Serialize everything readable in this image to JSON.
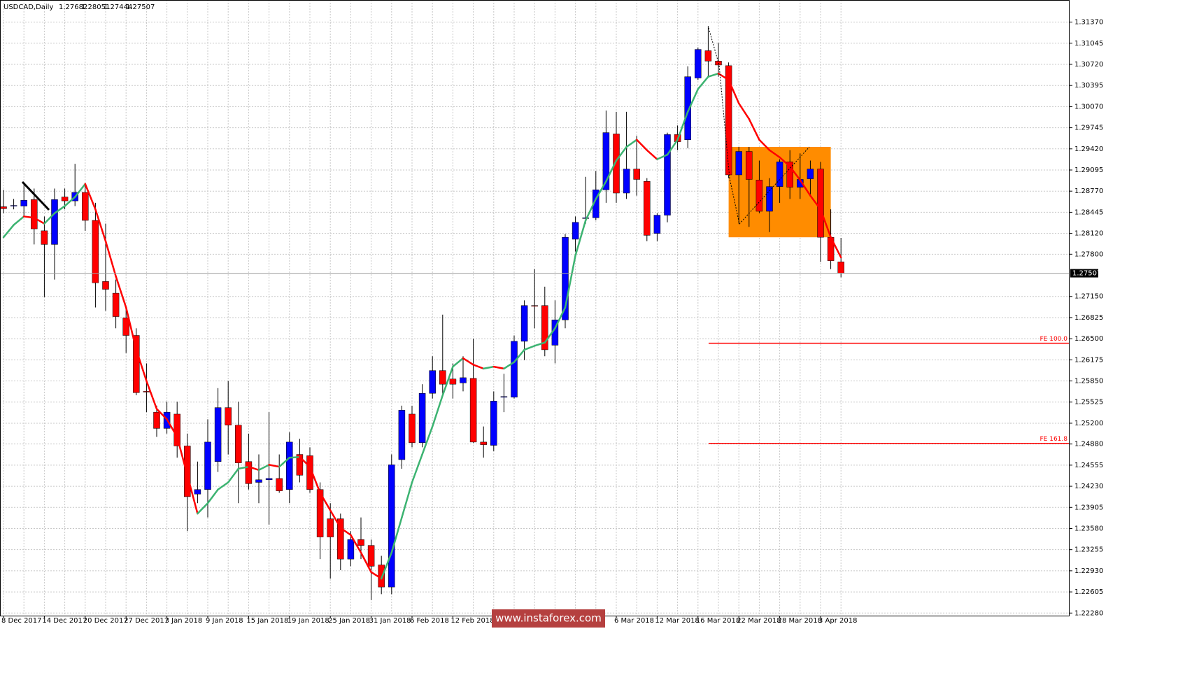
{
  "chart_data": {
    "type": "candlestick",
    "title": "USDCAD,Daily",
    "categories": [
      "8 Dec 2017",
      null,
      null,
      null,
      "14 Dec 2017",
      null,
      null,
      null,
      "20 Dec 2017",
      null,
      null,
      null,
      "27 Dec 2017",
      null,
      null,
      null,
      "3 Jan 2018",
      null,
      null,
      null,
      "9 Jan 2018",
      null,
      null,
      null,
      "15 Jan 2018",
      null,
      null,
      null,
      "19 Jan 2018",
      null,
      null,
      null,
      "25 Jan 2018",
      null,
      null,
      null,
      "31 Jan 2018",
      null,
      null,
      null,
      "6 Feb 2018",
      null,
      null,
      null,
      "12 Feb 2018",
      null,
      null,
      null,
      null,
      null,
      null,
      null,
      null,
      null,
      null,
      null,
      null,
      null,
      null,
      null,
      "6 Mar 2018",
      null,
      null,
      null,
      "12 Mar 2018",
      null,
      null,
      null,
      "16 Mar 2018",
      null,
      null,
      null,
      "22 Mar 2018",
      null,
      null,
      null,
      "28 Mar 2018",
      null,
      null,
      null,
      "3 Apr 2018",
      null,
      null
    ],
    "open": [
      1.2853,
      1.2854,
      1.2854,
      1.2864,
      1.2816,
      1.2795,
      1.2868,
      1.2862,
      1.2875,
      1.2832,
      1.2738,
      1.272,
      1.2682,
      1.2655,
      1.2569,
      1.2537,
      1.2512,
      1.2534,
      1.2485,
      1.2411,
      1.2418,
      1.2461,
      1.2544,
      1.2517,
      1.2461,
      1.2429,
      1.2433,
      1.2435,
      1.2418,
      1.2472,
      1.247,
      1.2418,
      1.2373,
      1.2373,
      1.2311,
      1.2341,
      1.2332,
      1.2302,
      1.2268,
      1.2464,
      1.2534,
      1.249,
      1.2566,
      1.2601,
      1.2588,
      1.2582,
      1.2589,
      1.2491,
      1.2486,
      1.256,
      1.256,
      1.2646,
      1.2701,
      1.2701,
      1.264,
      1.2679,
      1.2803,
      1.2835,
      1.2836,
      1.2879,
      1.2965,
      1.2874,
      1.2911,
      1.2892,
      1.2812,
      1.284,
      1.2964,
      1.2956,
      1.3051,
      1.3093,
      1.3077,
      1.307,
      1.2902,
      1.2938,
      1.2894,
      1.2846,
      1.2884,
      1.2922,
      1.2883,
      1.2896,
      1.2911,
      1.2806,
      1.27682
    ],
    "high": [
      1.2879,
      1.2865,
      1.2886,
      1.2881,
      1.2838,
      1.2881,
      1.2881,
      1.2919,
      1.2886,
      1.2859,
      1.2827,
      1.2741,
      1.2698,
      1.2666,
      1.2612,
      1.2547,
      1.2553,
      1.2553,
      1.2504,
      1.2461,
      1.2526,
      1.2574,
      1.2585,
      1.2553,
      1.2504,
      1.2472,
      1.2537,
      1.2472,
      1.2506,
      1.2496,
      1.2483,
      1.2429,
      1.2397,
      1.2381,
      1.2354,
      1.2375,
      1.2341,
      1.2316,
      1.2472,
      1.2547,
      1.2547,
      1.258,
      1.2623,
      1.2687,
      1.2612,
      1.2623,
      1.265,
      1.2515,
      1.2569,
      1.2596,
      1.2655,
      1.2709,
      1.2757,
      1.273,
      1.2709,
      1.2811,
      1.2838,
      1.2899,
      1.2908,
      1.3001,
      1.2999,
      1.2999,
      1.2962,
      1.2897,
      1.2843,
      1.2967,
      1.2978,
      1.3069,
      1.3098,
      1.3131,
      1.3105,
      1.3075,
      1.2945,
      1.2945,
      1.2924,
      1.2897,
      1.2926,
      1.294,
      1.2935,
      1.2924,
      1.2922,
      1.2849,
      1.28051
    ],
    "low": [
      1.2843,
      1.2849,
      1.2838,
      1.2795,
      1.2714,
      1.2741,
      1.2849,
      1.2854,
      1.2816,
      1.2698,
      1.2693,
      1.2666,
      1.2628,
      1.2563,
      1.2537,
      1.2499,
      1.2504,
      1.2467,
      1.2354,
      1.2397,
      1.2375,
      1.2445,
      1.2472,
      1.2397,
      1.2418,
      1.2397,
      1.2364,
      1.2413,
      1.2397,
      1.2429,
      1.2413,
      1.2311,
      1.2281,
      1.2294,
      1.23,
      1.2311,
      1.2248,
      1.2257,
      1.2257,
      1.245,
      1.2483,
      1.2483,
      1.2558,
      1.2563,
      1.2558,
      1.2569,
      1.249,
      1.2467,
      1.2477,
      1.2537,
      1.2558,
      1.2617,
      1.2666,
      1.2623,
      1.2612,
      1.2666,
      1.2784,
      1.2827,
      1.2832,
      1.2859,
      1.2859,
      1.2865,
      1.287,
      1.28,
      1.28,
      1.2829,
      1.294,
      1.2943,
      1.3048,
      1.3053,
      1.3053,
      1.2897,
      1.2827,
      1.2822,
      1.2843,
      1.2814,
      1.2859,
      1.2865,
      1.2865,
      1.287,
      1.2768,
      1.2757,
      1.27444
    ],
    "close": [
      1.285,
      1.2855,
      1.2863,
      1.2819,
      1.2795,
      1.2864,
      1.2862,
      1.2875,
      1.2832,
      1.2736,
      1.2726,
      1.2684,
      1.2655,
      1.2567,
      1.2568,
      1.2512,
      1.2537,
      1.2485,
      1.2407,
      1.2418,
      1.2491,
      1.2544,
      1.2517,
      1.2459,
      1.2427,
      1.2433,
      1.2435,
      1.2416,
      1.2491,
      1.244,
      1.2418,
      1.2345,
      1.2345,
      1.2311,
      1.2341,
      1.2332,
      1.23,
      1.2268,
      1.2456,
      1.254,
      1.249,
      1.2566,
      1.2601,
      1.258,
      1.258,
      1.259,
      1.2491,
      1.2487,
      1.2554,
      1.2561,
      1.2646,
      1.2701,
      1.27,
      1.2633,
      1.2679,
      1.2806,
      1.2829,
      1.2836,
      1.2879,
      1.2967,
      1.2874,
      1.2911,
      1.2895,
      1.2809,
      1.284,
      1.2964,
      1.2953,
      1.3053,
      1.3095,
      1.3077,
      1.3071,
      1.2902,
      1.2938,
      1.2895,
      1.2846,
      1.2884,
      1.2922,
      1.2883,
      1.2895,
      1.2911,
      1.2806,
      1.277,
      1.27507
    ],
    "up_color": "#0000ff",
    "down_color": "#ff0000",
    "ma": {
      "values": [
        1.2806,
        1.2825,
        1.2838,
        1.2836,
        1.2827,
        1.2843,
        1.2854,
        1.2868,
        1.2888,
        1.2849,
        1.28,
        1.2746,
        1.2698,
        1.2633,
        1.2585,
        1.2542,
        1.2526,
        1.2499,
        1.244,
        1.2381,
        1.2397,
        1.2418,
        1.2429,
        1.245,
        1.2453,
        1.2448,
        1.2456,
        1.2453,
        1.2467,
        1.2468,
        1.2453,
        1.2413,
        1.2386,
        1.2359,
        1.2348,
        1.2321,
        1.2291,
        1.2281,
        1.2321,
        1.2375,
        1.2429,
        1.2472,
        1.2515,
        1.2563,
        1.2607,
        1.262,
        1.261,
        1.2604,
        1.2607,
        1.2604,
        1.2614,
        1.2633,
        1.2639,
        1.2644,
        1.2666,
        1.2698,
        1.2778,
        1.2832,
        1.2865,
        1.2892,
        1.2924,
        1.2945,
        1.2956,
        1.294,
        1.2926,
        1.2933,
        1.2956,
        1.2999,
        1.3034,
        1.3053,
        1.3058,
        1.3048,
        1.3012,
        1.2988,
        1.2956,
        1.294,
        1.2929,
        1.2915,
        1.2894,
        1.287,
        1.2849,
        1.2806,
        1.2775
      ],
      "up_color": "#3cb371",
      "down_color": "#ff0000"
    },
    "ylim": [
      1.2224,
      1.3171
    ],
    "yticks": [
      {
        "value": 1.3137,
        "label": "1.31370"
      },
      1.31045,
      {
        "value": 1.3072,
        "label": "1.30720"
      },
      1.30395,
      {
        "value": 1.3007,
        "label": "1.30070"
      },
      1.29745,
      {
        "value": 1.2942,
        "label": "1.29420"
      },
      1.29095,
      {
        "value": 1.2877,
        "label": "1.28770"
      },
      1.28445,
      {
        "value": 1.2812,
        "label": "1.28120"
      },
      {
        "value": 1.278,
        "label": "1.27800"
      },
      {
        "value": 1.2715,
        "label": "1.27150"
      },
      1.26825,
      {
        "value": 1.265,
        "label": "1.26500"
      },
      1.26175,
      {
        "value": 1.2585,
        "label": "1.25850"
      },
      1.25525,
      {
        "value": 1.252,
        "label": "1.25200"
      },
      {
        "value": 1.2488,
        "label": "1.24880"
      },
      1.24555,
      {
        "value": 1.2423,
        "label": "1.24230"
      },
      1.23905,
      {
        "value": 1.2358,
        "label": "1.23580"
      },
      1.23255,
      {
        "value": 1.2293,
        "label": "1.22930"
      },
      1.22605,
      {
        "value": 1.2228,
        "label": "1.22280"
      }
    ],
    "grid": true,
    "zone": {
      "top": 1.2945,
      "bottom": 1.2806,
      "color": "#ff8c00"
    },
    "levels": [
      {
        "label": "FE 100.0",
        "value": 1.2643,
        "color": "#ff0000"
      },
      {
        "label": "FE 161.8",
        "value": 1.2489,
        "color": "#ff0000"
      }
    ],
    "watermark": "www.instaforex.com"
  }
}
